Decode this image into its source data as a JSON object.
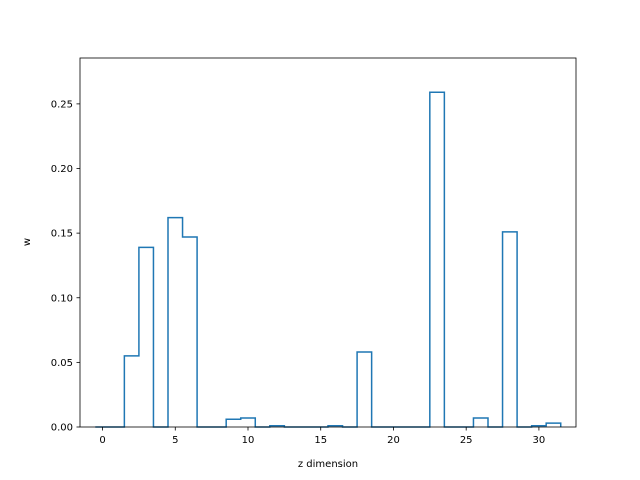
{
  "chart_data": {
    "type": "bar",
    "style": "step-histogram",
    "xlabel": "z dimension",
    "ylabel": "w",
    "xlim": [
      -1.55,
      32.55
    ],
    "ylim": [
      0,
      0.2855
    ],
    "grid": false,
    "legend": "none",
    "x": [
      0,
      1,
      2,
      3,
      4,
      5,
      6,
      7,
      8,
      9,
      10,
      11,
      12,
      13,
      14,
      15,
      16,
      17,
      18,
      19,
      20,
      21,
      22,
      23,
      24,
      25,
      26,
      27,
      28,
      29,
      30,
      31
    ],
    "values": [
      0.0,
      0.0,
      0.055,
      0.139,
      0.0,
      0.162,
      0.147,
      0.0,
      0.0,
      0.006,
      0.007,
      0.0,
      0.001,
      0.0,
      0.0,
      0.0,
      0.001,
      0.0,
      0.058,
      0.0,
      0.0,
      0.0,
      0.0,
      0.259,
      0.0,
      0.0,
      0.007,
      0.0,
      0.151,
      0.0,
      0.001,
      0.003
    ],
    "xticks": [
      0,
      5,
      10,
      15,
      20,
      25,
      30
    ],
    "xtick_labels": [
      "0",
      "5",
      "10",
      "15",
      "20",
      "25",
      "30"
    ],
    "yticks": [
      0.0,
      0.05,
      0.1,
      0.15,
      0.2,
      0.25
    ],
    "ytick_labels": [
      "0.00",
      "0.05",
      "0.10",
      "0.15",
      "0.20",
      "0.25"
    ],
    "colors": {
      "step": "#1f77b4",
      "axes": "#000000",
      "background": "#ffffff"
    }
  }
}
